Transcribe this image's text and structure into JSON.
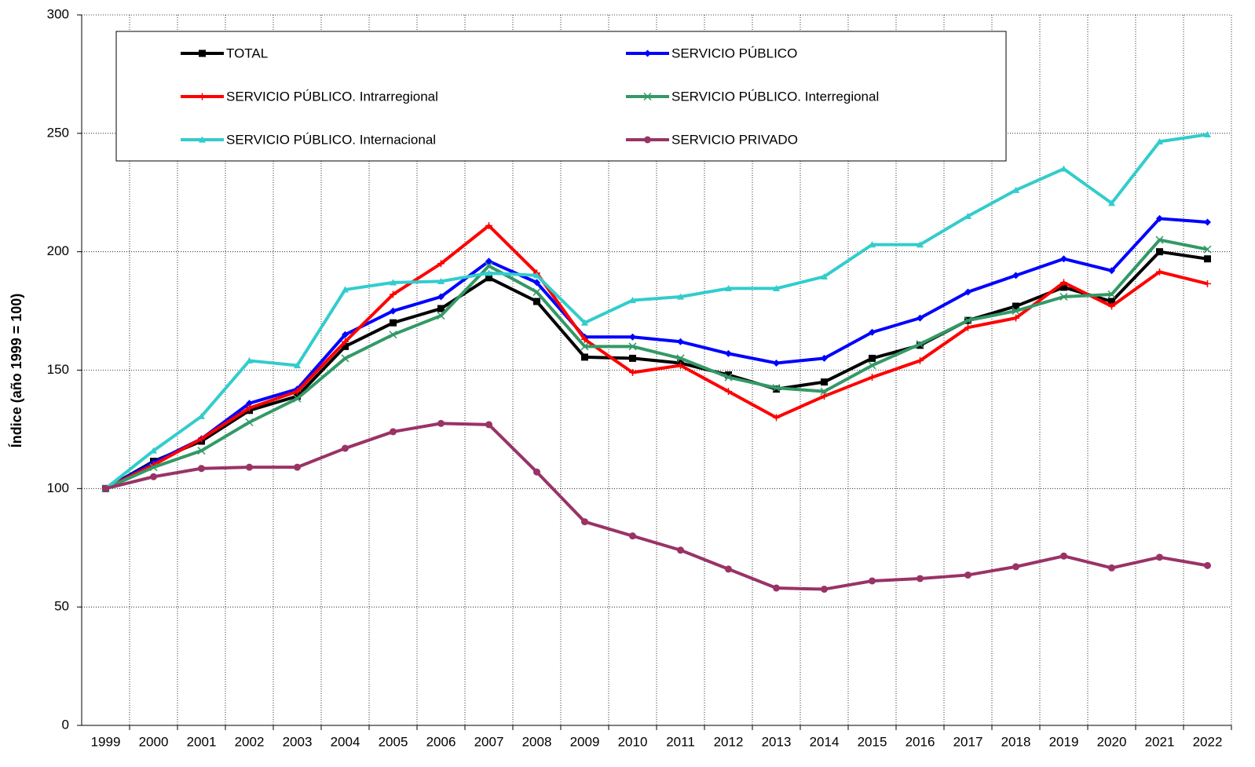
{
  "chart_data": {
    "type": "line",
    "y_label": "Índice (año 1999 = 100)",
    "categories": [
      "1999",
      "2000",
      "2001",
      "2002",
      "2003",
      "2004",
      "2005",
      "2006",
      "2007",
      "2008",
      "2009",
      "2010",
      "2011",
      "2012",
      "2013",
      "2014",
      "2015",
      "2016",
      "2017",
      "2018",
      "2019",
      "2020",
      "2021",
      "2022"
    ],
    "ylim": [
      0,
      300
    ],
    "yticks": [
      0,
      50,
      100,
      150,
      200,
      250,
      300
    ],
    "grid": true,
    "series": [
      {
        "name": "TOTAL",
        "color": "#000000",
        "marker": "square",
        "values": [
          100,
          111.5,
          120,
          133,
          139,
          160,
          170,
          176,
          189,
          179,
          155.5,
          155,
          153,
          148,
          142,
          145,
          155,
          160.5,
          171,
          177,
          185,
          179,
          200,
          197
        ]
      },
      {
        "name": "SERVICIO PÚBLICO",
        "color": "#0000ff",
        "marker": "diamond",
        "values": [
          100,
          111,
          121,
          136,
          142,
          165,
          175,
          181,
          196,
          187,
          164,
          164,
          162,
          157,
          153,
          155,
          166,
          172,
          183,
          190,
          197,
          192,
          214,
          212.5
        ]
      },
      {
        "name": "SERVICIO PÚBLICO. Intrarregional",
        "color": "#ff0000",
        "marker": "plus",
        "values": [
          100,
          110,
          121,
          134,
          141,
          162,
          182,
          195,
          211,
          191,
          163,
          149,
          152,
          141,
          130,
          139,
          147,
          154,
          168,
          172,
          187,
          177,
          191.5,
          186.5
        ]
      },
      {
        "name": "SERVICIO PÚBLICO. Interregional",
        "color": "#339966",
        "marker": "cross",
        "values": [
          100,
          109,
          116,
          128,
          138,
          155,
          165,
          173,
          194,
          183,
          160,
          160,
          155,
          147,
          142.5,
          141,
          152,
          161,
          171,
          175,
          181,
          182,
          205,
          201
        ]
      },
      {
        "name": "SERVICIO PÚBLICO. Internacional",
        "color": "#33cccc",
        "marker": "triangle",
        "values": [
          100,
          116,
          130.5,
          154,
          152,
          184,
          187,
          187.5,
          191,
          190,
          170,
          179.5,
          181,
          184.5,
          184.5,
          189.5,
          203,
          203,
          215,
          226,
          235,
          220.5,
          246.5,
          249.5
        ]
      },
      {
        "name": "SERVICIO PRIVADO",
        "color": "#993366",
        "marker": "circle",
        "values": [
          100,
          105,
          108.5,
          109,
          109,
          117,
          124,
          127.5,
          127,
          107,
          86,
          80,
          74,
          66,
          58,
          57.5,
          61,
          62,
          63.5,
          67,
          71.5,
          66.5,
          71,
          67.5
        ]
      }
    ]
  }
}
